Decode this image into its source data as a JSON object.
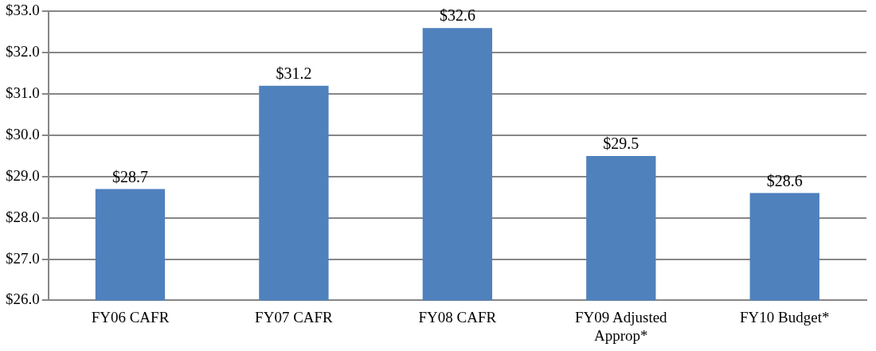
{
  "chart_data": {
    "type": "bar",
    "categories": [
      "FY06 CAFR",
      "FY07 CAFR",
      "FY08 CAFR",
      "FY09 Adjusted Approp*",
      "FY10 Budget*"
    ],
    "values": [
      28.7,
      31.2,
      32.6,
      29.5,
      28.6
    ],
    "value_labels": [
      "$28.7",
      "$31.2",
      "$32.6",
      "$29.5",
      "$28.6"
    ],
    "color": "#4f81bd",
    "ylim": [
      26,
      33
    ],
    "yticks": [
      {
        "value": 26,
        "label": "$26.0"
      },
      {
        "value": 27,
        "label": "$27.0"
      },
      {
        "value": 28,
        "label": "$28.0"
      },
      {
        "value": 29,
        "label": "$29.0"
      },
      {
        "value": 30,
        "label": "$30.0"
      },
      {
        "value": 31,
        "label": "$31.0"
      },
      {
        "value": 32,
        "label": "$32.0"
      },
      {
        "value": 33,
        "label": "$33.0"
      }
    ],
    "grid": "y"
  }
}
